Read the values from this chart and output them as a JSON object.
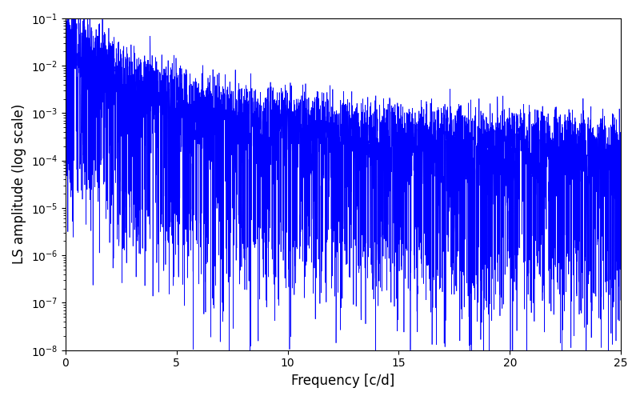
{
  "freq_min": 0,
  "freq_max": 25,
  "ylim_min": 1e-08,
  "ylim_max": 0.1,
  "xlabel": "Frequency [c/d]",
  "ylabel": "LS amplitude (log scale)",
  "line_color": "#0000ff",
  "background_color": "#ffffff",
  "xticks": [
    0,
    5,
    10,
    15,
    20,
    25
  ],
  "figsize": [
    8.0,
    5.0
  ],
  "dpi": 100
}
